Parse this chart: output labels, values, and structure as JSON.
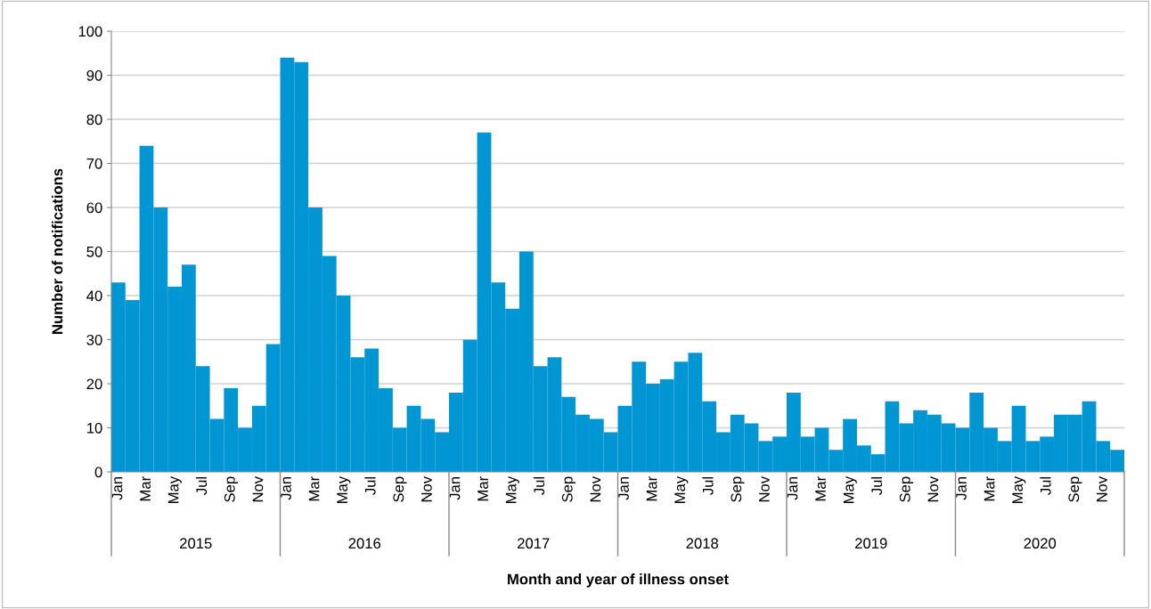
{
  "chart_data": {
    "type": "bar",
    "xlabel": "Month and year of illness onset",
    "ylabel": "Number of notifications",
    "categories": [
      "Jan",
      null,
      "Mar",
      null,
      "May",
      null,
      "Jul",
      null,
      "Sep",
      null,
      "Nov",
      null,
      "Jan",
      null,
      "Mar",
      null,
      "May",
      null,
      "Jul",
      null,
      "Sep",
      null,
      "Nov",
      null,
      "Jan",
      null,
      "Mar",
      null,
      "May",
      null,
      "Jul",
      null,
      "Sep",
      null,
      "Nov",
      null,
      "Jan",
      null,
      "Mar",
      null,
      "May",
      null,
      "Jul",
      null,
      "Sep",
      null,
      "Nov",
      null,
      "Jan",
      null,
      "Mar",
      null,
      "May",
      null,
      "Jul",
      null,
      "Sep",
      null,
      "Nov",
      null,
      "Jan",
      null,
      "Mar",
      null,
      "May",
      null,
      "Jul",
      null,
      "Sep",
      null,
      "Nov",
      null
    ],
    "values": [
      43,
      39,
      74,
      60,
      42,
      47,
      24,
      12,
      19,
      10,
      15,
      29,
      94,
      93,
      60,
      49,
      40,
      26,
      28,
      19,
      10,
      15,
      12,
      9,
      18,
      30,
      77,
      43,
      37,
      50,
      24,
      26,
      17,
      13,
      12,
      9,
      15,
      25,
      20,
      21,
      25,
      27,
      16,
      9,
      13,
      11,
      7,
      8,
      18,
      8,
      10,
      5,
      12,
      6,
      4,
      16,
      11,
      14,
      13,
      11,
      10,
      18,
      10,
      7,
      15,
      7,
      8,
      13,
      13,
      16,
      7,
      5
    ],
    "color": "#0095d3",
    "annotations": [
      "2015",
      "2016",
      "2017",
      "2018",
      "2019",
      "2020"
    ],
    "ylim": [
      0,
      100
    ],
    "yticks": [
      0,
      10,
      20,
      30,
      40,
      50,
      60,
      70,
      80,
      90,
      100
    ],
    "grid": "y"
  }
}
